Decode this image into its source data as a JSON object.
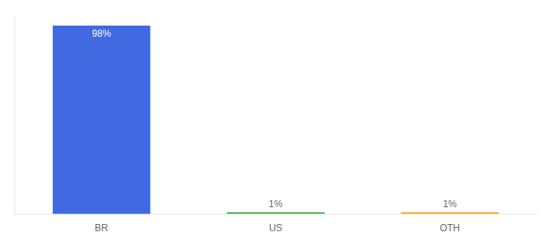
{
  "chart_data": {
    "type": "bar",
    "categories": [
      "BR",
      "US",
      "OTH"
    ],
    "values": [
      98,
      1,
      1
    ],
    "colors": [
      "#4169e1",
      "#4caf50",
      "#ffa726"
    ],
    "data_labels": true,
    "value_labels": [
      "98%",
      "1%",
      "1%"
    ],
    "ylim": [
      0,
      103
    ],
    "tick_labels": "x",
    "grid": false
  }
}
